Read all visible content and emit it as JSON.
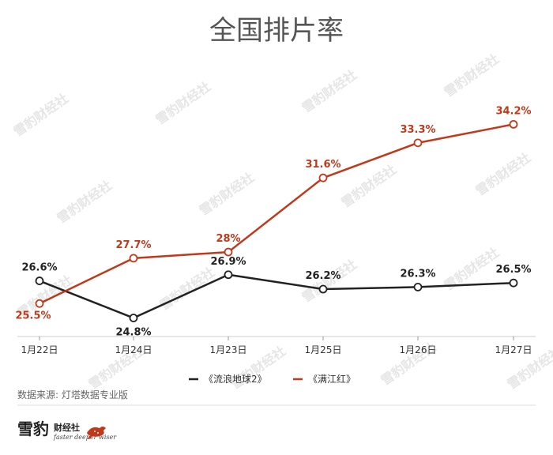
{
  "chart_data": {
    "type": "line",
    "title": "全国排片率",
    "categories": [
      "1月22日",
      "1月24日",
      "1月23日",
      "1月25日",
      "1月26日",
      "1月27日"
    ],
    "series": [
      {
        "name": "《流浪地球2》",
        "color": "#222222",
        "values": [
          26.6,
          24.8,
          26.9,
          26.2,
          26.3,
          26.5
        ],
        "labels": [
          "26.6%",
          "24.8%",
          "26.9%",
          "26.2%",
          "26.3%",
          "26.5%"
        ]
      },
      {
        "name": "《满江红》",
        "color": "#c0391b",
        "values": [
          25.5,
          27.7,
          28,
          31.6,
          33.3,
          34.2
        ],
        "labels": [
          "25.5%",
          "27.7%",
          "28%",
          "31.6%",
          "33.3%",
          "34.2%"
        ]
      }
    ],
    "ylim": [
      23.9,
      36.4
    ],
    "grid": false,
    "legend_position": "bottom-center"
  },
  "source": "数据来源: 灯塔数据专业版",
  "logo": {
    "main": "雪豹",
    "sub": "财经社",
    "tagline": "faster deeper wiser",
    "icon": "leopard-icon"
  },
  "watermark": "雪豹财经社"
}
